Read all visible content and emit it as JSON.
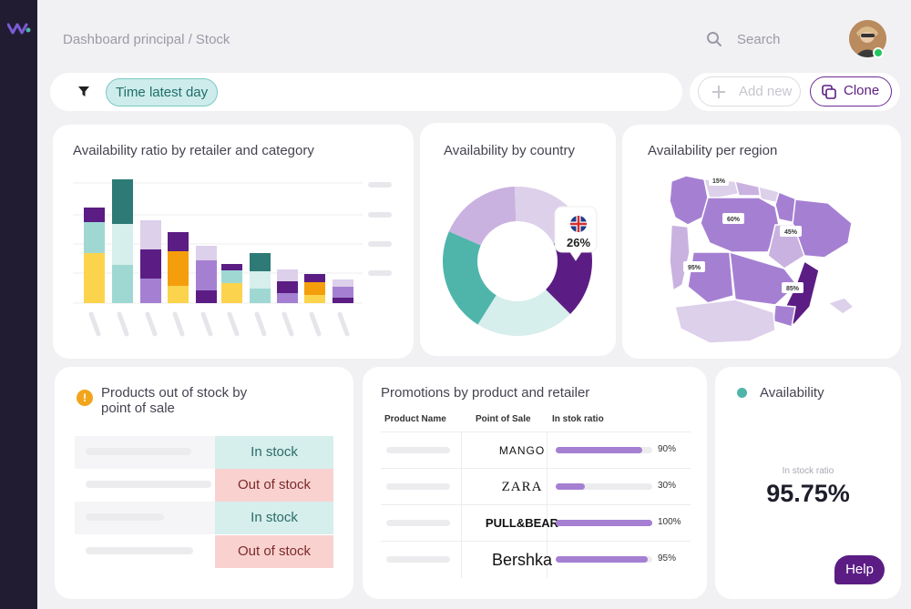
{
  "header": {
    "breadcrumb": "Dashboard principal / Stock",
    "search_label": "Search"
  },
  "filter": {
    "chip": "Time latest day"
  },
  "actions": {
    "add_new": "Add new",
    "clone": "Clone"
  },
  "ratio_card": {
    "title": "Availability ratio by retailer and category"
  },
  "country_card": {
    "title": "Availability by  country",
    "badge_value": "26%"
  },
  "region_card": {
    "title": "Availability per region",
    "labels": [
      "15%",
      "60%",
      "45%",
      "95%",
      "85%"
    ]
  },
  "oos_card": {
    "title_line1": "Products out of stock by",
    "title_line2": "point of sale",
    "rows": [
      {
        "status": "In stock"
      },
      {
        "status": "Out of stock"
      },
      {
        "status": "In stock"
      },
      {
        "status": "Out of stock"
      }
    ]
  },
  "promo_card": {
    "title": "Promotions by product and retailer",
    "columns": [
      "Product Name",
      "Point of Sale",
      "In stok ratio"
    ],
    "rows": [
      {
        "brand": "MANGO",
        "ratio": "90%",
        "value": 0.9
      },
      {
        "brand": "ZARA",
        "ratio": "30%",
        "value": 0.3
      },
      {
        "brand": "PULL&BEAR",
        "ratio": "100%",
        "value": 1.0
      },
      {
        "brand": "Bershka",
        "ratio": "95%",
        "value": 0.95
      }
    ]
  },
  "availability_card": {
    "title": "Availability",
    "subtitle": "In stock ratio",
    "value": "95.75%"
  },
  "help": {
    "label": "Help"
  },
  "colors": {
    "accent": "#5b1d84",
    "teal": "#4fb5ab",
    "lavender": "#c9b2e0",
    "yellow": "#fcd34d",
    "orange": "#f59e0b"
  }
}
